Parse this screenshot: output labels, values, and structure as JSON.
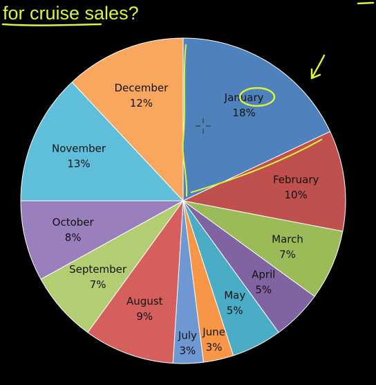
{
  "heading": {
    "text": "for cruise sales?",
    "color": "#d6f542"
  },
  "chart_data": {
    "type": "pie",
    "title": "",
    "legend": "none",
    "slices": [
      {
        "label": "January",
        "percent_label": "18%",
        "value": 18,
        "color": "#4f81bd"
      },
      {
        "label": "February",
        "percent_label": "10%",
        "value": 10,
        "color": "#c0504d"
      },
      {
        "label": "March",
        "percent_label": "7%",
        "value": 7,
        "color": "#9bbb59"
      },
      {
        "label": "April",
        "percent_label": "5%",
        "value": 5,
        "color": "#8064a2"
      },
      {
        "label": "May",
        "percent_label": "5%",
        "value": 5,
        "color": "#4bacc6"
      },
      {
        "label": "June",
        "percent_label": "3%",
        "value": 3,
        "color": "#f79646"
      },
      {
        "label": "July",
        "percent_label": "3%",
        "value": 3,
        "color": "#6f97d2"
      },
      {
        "label": "August",
        "percent_label": "9%",
        "value": 9,
        "color": "#d55f5c"
      },
      {
        "label": "September",
        "percent_label": "7%",
        "value": 7,
        "color": "#b3cd73"
      },
      {
        "label": "October",
        "percent_label": "8%",
        "value": 8,
        "color": "#9a7fbd"
      },
      {
        "label": "November",
        "percent_label": "13%",
        "value": 13,
        "color": "#5fbfdb"
      },
      {
        "label": "December",
        "percent_label": "12%",
        "value": 12,
        "color": "#f9a65f"
      }
    ]
  },
  "annotations": {
    "ink_color": "#ddf23a",
    "highlighted_slice": "January"
  }
}
